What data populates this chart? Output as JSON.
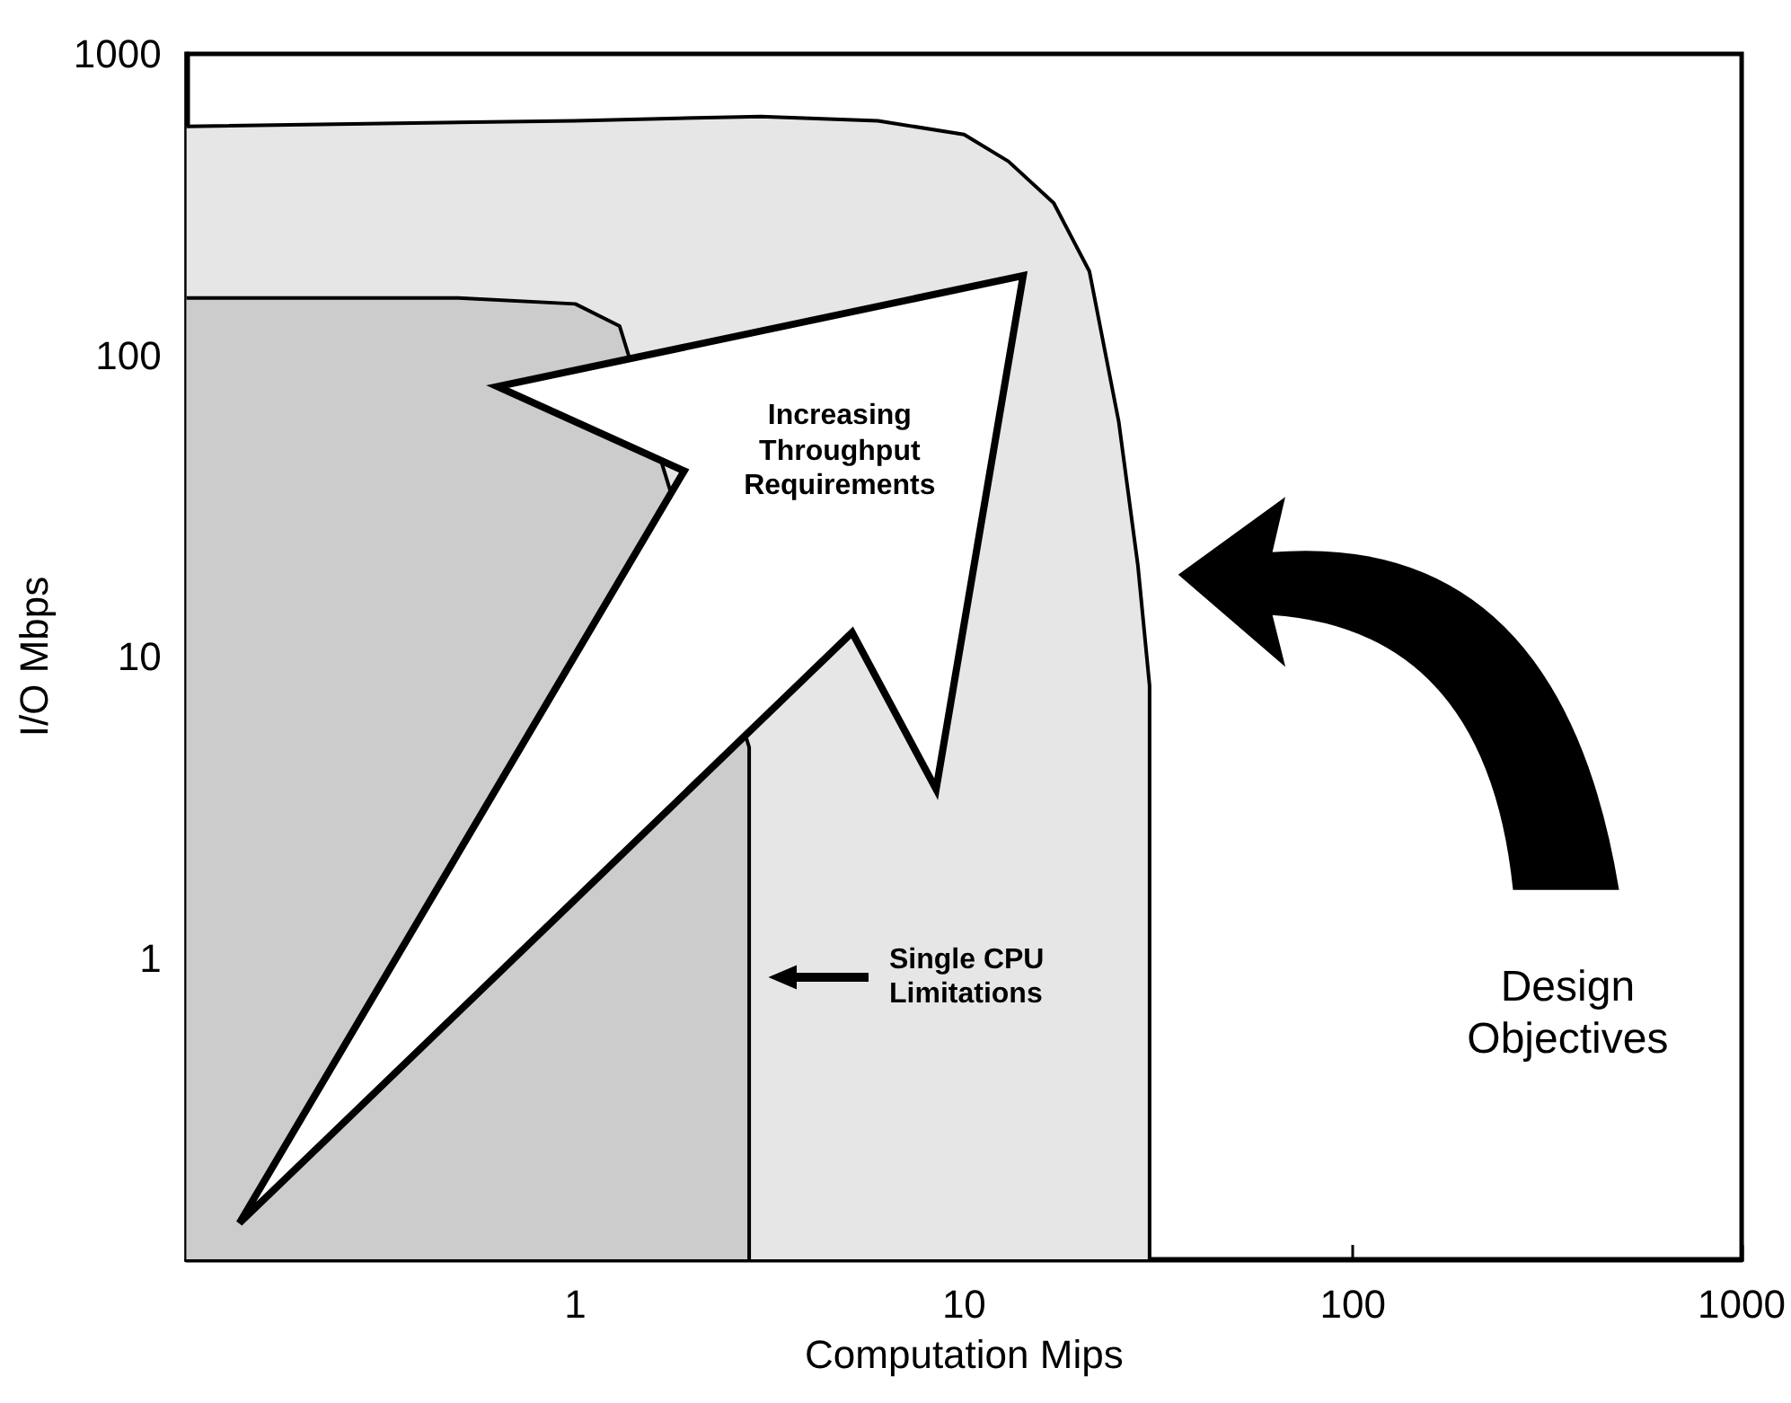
{
  "chart_data": {
    "type": "area",
    "xlabel": "Computation Mips",
    "ylabel": "I/O Mbps",
    "log": "xy",
    "marker": "none",
    "xlim": [
      0.1,
      1000
    ],
    "ylim": [
      0.1,
      1000
    ],
    "xticks": [
      1,
      10,
      100,
      1000
    ],
    "yticks": [
      1,
      10,
      100,
      1000
    ],
    "series": [
      {
        "color": "#e6e6e6",
        "x": [
          0.1,
          1,
          3,
          6,
          10,
          13,
          17,
          21,
          25,
          28,
          30,
          30
        ],
        "values": [
          575,
          600,
          620,
          600,
          540,
          440,
          320,
          190,
          60,
          20,
          8,
          0.1
        ]
      },
      {
        "color": "#cccccc",
        "x": [
          0.1,
          0.5,
          1,
          1.3,
          1.6,
          2.2,
          2.8,
          2.8
        ],
        "values": [
          155,
          155,
          148,
          125,
          null,
          null,
          5,
          0.1
        ]
      }
    ],
    "annotations": [
      "Increasing Throughput Requirements",
      "Single CPU Limitations",
      "Design Objectives"
    ]
  }
}
